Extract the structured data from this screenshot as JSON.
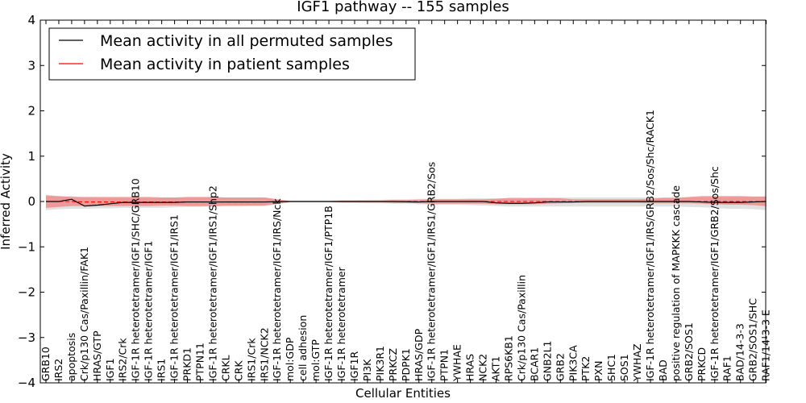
{
  "chart_data": {
    "type": "line",
    "title": "IGF1 pathway -- 155 samples",
    "xlabel": "Cellular Entities",
    "ylabel": "Inferred Activity",
    "ylim": [
      -4,
      4
    ],
    "yticks": [
      -4,
      -3,
      -2,
      -1,
      0,
      1,
      2,
      3,
      4
    ],
    "ytick_labels": [
      "−4",
      "−3",
      "−2",
      "−1",
      "0",
      "1",
      "2",
      "3",
      "4"
    ],
    "legend_position": "top-left",
    "categories": [
      "GRB10",
      "IRS2",
      "apoptosis",
      "Crk/p130 Cas/Paxillin/FAK1",
      "HRAS/GTP",
      "IGF1",
      "IRS2/Crk",
      "IGF-1R heterotetramer/IGF1/SHC/GRB10",
      "IGF-1R heterotetramer/IGF1",
      "IRS1",
      "IGF-1R heterotetramer/IGF1/IRS1",
      "PRKD1",
      "PTPN11",
      "IGF-1R heterotetramer/IGF1/IRS1/Shp2",
      "CRKL",
      "CRK",
      "IRS1/Crk",
      "IRS1/NCK2",
      "IGF-1R heterotetramer/IGF1/IRS/Nck",
      "mol:GDP",
      "cell adhesion",
      "mol:GTP",
      "IGF-1R heterotetramer/IGF1/PTP1B",
      "IGF-1R heterotetramer",
      "IGF1R",
      "PI3K",
      "PIK3R1",
      "PRKCZ",
      "PDPK1",
      "HRAS/GDP",
      "IGF-1R heterotetramer/IGF1/IRS1/GRB2/Sos",
      "PTPN1",
      "YWHAE",
      "HRAS",
      "NCK2",
      "AKT1",
      "RPS6KB1",
      "Crk/p130 Cas/Paxillin",
      "BCAR1",
      "GNB2L1",
      "GRB2",
      "PIK3CA",
      "PTK2",
      "PXN",
      "SHC1",
      "SOS1",
      "YWHAZ",
      "IGF-1R heterotetramer/IGF1/IRS/GRB2/Sos/Shc/RACK1",
      "BAD",
      "positive regulation of MAPKKK cascade",
      "GRB2/SOS1",
      "PRKCD",
      "IGF-1R heterotetramer/IGF1/GRB2/Sos/Shc",
      "RAF1",
      "BAD/14-3-3",
      "GRB2/SOS1/SHC",
      "RAF1/14-3-3 E"
    ],
    "series": [
      {
        "name": "Mean activity in all permuted samples",
        "color": "#000000",
        "values": [
          0,
          0,
          0.05,
          -0.1,
          -0.08,
          -0.05,
          -0.02,
          -0.02,
          -0.02,
          -0.02,
          -0.02,
          -0.01,
          -0.01,
          -0.01,
          -0.01,
          -0.01,
          -0.01,
          -0.01,
          -0.005,
          0,
          0,
          0,
          0,
          0,
          0,
          0,
          0,
          0,
          -0.005,
          -0.01,
          0,
          0,
          0,
          0,
          0,
          -0.03,
          -0.04,
          -0.04,
          -0.03,
          -0.01,
          -0.01,
          -0.01,
          0,
          0,
          0,
          0,
          0,
          0,
          0,
          0,
          0,
          -0.01,
          -0.02,
          -0.02,
          -0.02,
          -0.01,
          0
        ],
        "band_low": [
          -0.19,
          -0.17,
          -0.16,
          -0.16,
          -0.15,
          -0.15,
          -0.14,
          -0.14,
          -0.14,
          -0.14,
          -0.13,
          -0.12,
          -0.12,
          -0.11,
          -0.11,
          -0.11,
          -0.1,
          -0.1,
          -0.06,
          -0.02,
          -0.02,
          -0.02,
          -0.02,
          -0.03,
          -0.03,
          -0.04,
          -0.04,
          -0.05,
          -0.05,
          -0.06,
          -0.07,
          -0.07,
          -0.07,
          -0.08,
          -0.09,
          -0.1,
          -0.11,
          -0.11,
          -0.11,
          -0.11,
          -0.11,
          -0.11,
          -0.11,
          -0.11,
          -0.11,
          -0.11,
          -0.11,
          -0.11,
          -0.11,
          -0.11,
          -0.12,
          -0.13,
          -0.14,
          -0.16,
          -0.16,
          -0.17,
          -0.19
        ],
        "band_high": [
          0.11,
          0.11,
          0.12,
          0.09,
          0.08,
          0.08,
          0.08,
          0.08,
          0.08,
          0.08,
          0.09,
          0.09,
          0.09,
          0.09,
          0.09,
          0.09,
          0.09,
          0.09,
          0.05,
          0.02,
          0.02,
          0.02,
          0.02,
          0.03,
          0.03,
          0.04,
          0.04,
          0.05,
          0.05,
          0.06,
          0.06,
          0.06,
          0.06,
          0.07,
          0.07,
          0.07,
          0.06,
          0.06,
          0.07,
          0.08,
          0.09,
          0.09,
          0.09,
          0.09,
          0.09,
          0.09,
          0.09,
          0.09,
          0.09,
          0.09,
          0.09,
          0.09,
          0.09,
          0.09,
          0.1,
          0.1,
          0.1
        ]
      },
      {
        "name": "Mean activity in patient samples",
        "color": "#ff0000",
        "fill": "#f08080",
        "values": [
          0,
          0,
          0,
          -0.01,
          -0.01,
          -0.01,
          -0.01,
          -0.01,
          -0.01,
          -0.01,
          -0.01,
          -0.01,
          -0.01,
          -0.01,
          -0.01,
          -0.01,
          -0.01,
          -0.01,
          -0.005,
          0,
          0,
          0,
          0,
          0,
          0,
          0,
          0,
          0,
          0,
          0,
          0,
          0,
          0,
          0,
          0,
          0,
          0,
          0,
          0,
          0,
          0,
          0,
          0,
          0,
          0,
          0,
          0,
          0,
          0,
          0,
          0,
          0,
          0,
          0,
          0,
          0,
          0
        ],
        "band_low": [
          -0.14,
          -0.12,
          -0.1,
          -0.1,
          -0.1,
          -0.1,
          -0.1,
          -0.1,
          -0.1,
          -0.09,
          -0.09,
          -0.1,
          -0.1,
          -0.1,
          -0.09,
          -0.09,
          -0.09,
          -0.09,
          -0.05,
          -0.01,
          -0.01,
          -0.01,
          -0.01,
          -0.02,
          -0.02,
          -0.02,
          -0.02,
          -0.03,
          -0.03,
          -0.04,
          -0.05,
          -0.05,
          -0.05,
          -0.05,
          -0.05,
          -0.06,
          -0.06,
          -0.06,
          -0.06,
          -0.05,
          -0.04,
          -0.03,
          -0.03,
          -0.03,
          -0.03,
          -0.03,
          -0.03,
          -0.04,
          -0.04,
          -0.04,
          -0.04,
          -0.05,
          -0.06,
          -0.07,
          -0.07,
          -0.08,
          -0.1
        ],
        "band_high": [
          0.14,
          0.12,
          0.1,
          0.1,
          0.1,
          0.1,
          0.1,
          0.1,
          0.1,
          0.09,
          0.09,
          0.1,
          0.1,
          0.1,
          0.09,
          0.09,
          0.09,
          0.09,
          0.05,
          0.01,
          0.01,
          0.01,
          0.01,
          0.02,
          0.02,
          0.02,
          0.02,
          0.03,
          0.03,
          0.04,
          0.05,
          0.05,
          0.05,
          0.05,
          0.05,
          0.06,
          0.08,
          0.08,
          0.08,
          0.08,
          0.07,
          0.05,
          0.05,
          0.05,
          0.05,
          0.05,
          0.05,
          0.06,
          0.08,
          0.08,
          0.1,
          0.12,
          0.12,
          0.12,
          0.12,
          0.11,
          0.11
        ]
      }
    ]
  }
}
